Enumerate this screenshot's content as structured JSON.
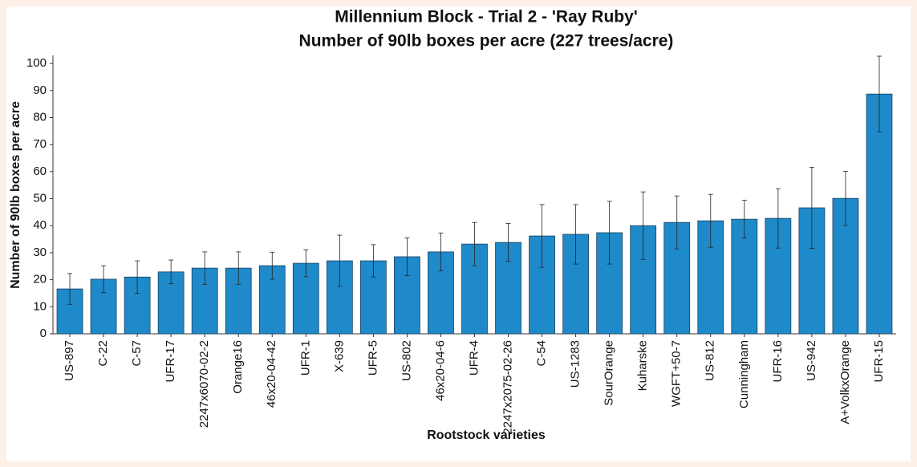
{
  "chart_data": {
    "type": "bar",
    "title": "Millennium Block - Trial 2 - 'Ray Ruby'",
    "subtitle": "Number of 90lb boxes per acre (227 trees/acre)",
    "x_label": "Rootstock varieties",
    "y_label": "Number of 90lb boxes per acre",
    "categories": [
      "US-897",
      "C-22",
      "C-57",
      "UFR-17",
      "2247x6070-02-2",
      "Orange16",
      "46x20-04-42",
      "UFR-1",
      "X-639",
      "UFR-5",
      "US-802",
      "46x20-04-6",
      "UFR-4",
      "2247x2075-02-26",
      "C-54",
      "US-1283",
      "SourOrange",
      "Kuharske",
      "WGFT+50-7",
      "US-812",
      "Cunningham",
      "UFR-16",
      "US-942",
      "A+VolkxOrange",
      "UFR-15"
    ],
    "values": [
      16.6,
      20.2,
      21,
      22.9,
      24.3,
      24.3,
      25.2,
      26.1,
      27,
      27,
      28.5,
      30.3,
      33.2,
      33.8,
      36.2,
      36.8,
      37.4,
      40,
      41.2,
      41.8,
      42.4,
      42.7,
      46.6,
      50.1,
      88.7
    ],
    "errors": [
      5.7,
      5,
      6,
      4.4,
      6,
      6,
      5,
      5,
      9.5,
      6,
      7,
      7,
      8,
      7,
      11.6,
      11,
      11.6,
      12.5,
      9.8,
      9.8,
      7,
      11,
      15,
      10,
      14
    ],
    "color": "#1f8ac9",
    "ylim": [
      0,
      103
    ],
    "yticks": [
      0,
      10,
      20,
      30,
      40,
      50,
      60,
      70,
      80,
      90,
      100
    ]
  }
}
